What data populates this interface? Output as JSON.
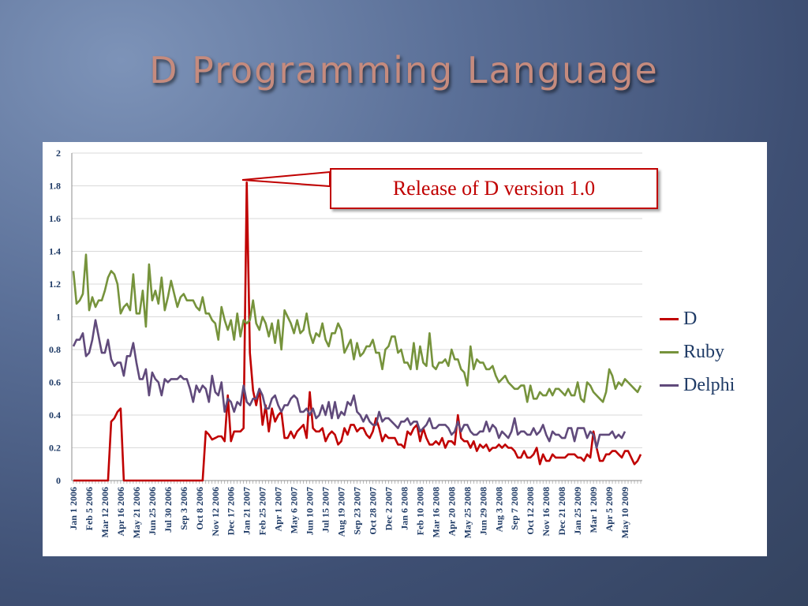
{
  "slide": {
    "title": "D Programming Language"
  },
  "annotation": {
    "text": "Release of D version 1.0"
  },
  "colors": {
    "D": "#c00000",
    "Ruby": "#76933c",
    "Delphi": "#604a7b",
    "grid": "#d9d9d9"
  },
  "chart_data": {
    "type": "line",
    "ylim": [
      0,
      2
    ],
    "yticks": [
      "0",
      "0.2",
      "0.4",
      "0.6",
      "0.8",
      "1",
      "1.2",
      "1.4",
      "1.6",
      "1.8",
      "2"
    ],
    "x_tick_labels": [
      "Jan 1 2006",
      "Feb 5 2006",
      "Mar 12 2006",
      "Apr 16 2006",
      "May 21 2006",
      "Jun 25 2006",
      "Jul 30 2006",
      "Sep 3 2006",
      "Oct 8 2006",
      "Nov 12 2006",
      "Dec 17 2006",
      "Jan 21 2007",
      "Feb 25 2007",
      "Apr 1 2007",
      "May 6 2007",
      "Jun 10 2007",
      "Jul 15 2007",
      "Aug 19 2007",
      "Sep 23 2007",
      "Oct 28 2007",
      "Dec 2 2007",
      "Jan 6 2008",
      "Feb 10 2008",
      "Mar 16 2008",
      "Apr 20 2008",
      "May 25 2008",
      "Jun 29 2008",
      "Aug 3 2008",
      "Sep 7 2008",
      "Oct 12 2008",
      "Nov 16 2008",
      "Dec 21 2008",
      "Jan 25 2009",
      "Mar 1 2009",
      "Apr 5 2009",
      "May 10 2009"
    ],
    "x_start": "Jan 1 2006",
    "x_interval": "weekly",
    "series": [
      {
        "name": "D",
        "values": [
          0,
          0,
          0,
          0,
          0,
          0,
          0,
          0,
          0,
          0,
          0,
          0,
          0.36,
          0.38,
          0.42,
          0.44,
          0,
          0,
          0,
          0,
          0,
          0,
          0,
          0,
          0,
          0,
          0,
          0,
          0,
          0,
          0,
          0,
          0,
          0,
          0,
          0,
          0,
          0,
          0,
          0,
          0,
          0,
          0.3,
          0.28,
          0.25,
          0.26,
          0.27,
          0.27,
          0.24,
          0.52,
          0.24,
          0.3,
          0.3,
          0.3,
          0.32,
          1.82,
          0.78,
          0.55,
          0.46,
          0.56,
          0.34,
          0.46,
          0.3,
          0.44,
          0.36,
          0.4,
          0.42,
          0.26,
          0.26,
          0.3,
          0.26,
          0.3,
          0.32,
          0.34,
          0.26,
          0.54,
          0.32,
          0.3,
          0.3,
          0.32,
          0.24,
          0.28,
          0.3,
          0.28,
          0.22,
          0.24,
          0.32,
          0.28,
          0.34,
          0.34,
          0.3,
          0.32,
          0.32,
          0.28,
          0.26,
          0.3,
          0.38,
          0.32,
          0.24,
          0.28,
          0.26,
          0.26,
          0.26,
          0.22,
          0.22,
          0.2,
          0.3,
          0.28,
          0.32,
          0.34,
          0.24,
          0.32,
          0.26,
          0.22,
          0.22,
          0.24,
          0.22,
          0.26,
          0.2,
          0.24,
          0.24,
          0.22,
          0.4,
          0.26,
          0.24,
          0.24,
          0.2,
          0.24,
          0.18,
          0.22,
          0.2,
          0.22,
          0.18,
          0.2,
          0.2,
          0.22,
          0.2,
          0.22,
          0.2,
          0.2,
          0.18,
          0.14,
          0.14,
          0.18,
          0.14,
          0.14,
          0.16,
          0.2,
          0.1,
          0.16,
          0.12,
          0.12,
          0.16,
          0.14,
          0.14,
          0.14,
          0.14,
          0.16,
          0.16,
          0.16,
          0.14,
          0.14,
          0.12,
          0.16,
          0.14,
          0.3,
          0.2,
          0.12,
          0.12,
          0.16,
          0.16,
          0.18,
          0.18,
          0.16,
          0.14,
          0.18,
          0.18,
          0.14,
          0.1,
          0.12,
          0.16
        ]
      },
      {
        "name": "Ruby",
        "values": [
          1.28,
          1.08,
          1.1,
          1.14,
          1.38,
          1.04,
          1.12,
          1.06,
          1.1,
          1.1,
          1.16,
          1.24,
          1.28,
          1.26,
          1.2,
          1.02,
          1.06,
          1.08,
          1.04,
          1.26,
          1.02,
          1.02,
          1.16,
          0.94,
          1.32,
          1.1,
          1.16,
          1.08,
          1.24,
          1.04,
          1.12,
          1.22,
          1.14,
          1.06,
          1.12,
          1.14,
          1.1,
          1.1,
          1.1,
          1.06,
          1.04,
          1.12,
          1.02,
          1.02,
          0.98,
          0.96,
          0.86,
          1.06,
          0.98,
          0.92,
          0.98,
          0.86,
          1.02,
          0.88,
          0.98,
          0.96,
          0.98,
          1.1,
          0.96,
          0.92,
          1.0,
          0.96,
          0.88,
          0.96,
          0.84,
          0.98,
          0.8,
          1.04,
          1.0,
          0.96,
          0.9,
          0.98,
          0.9,
          0.92,
          1.02,
          0.9,
          0.84,
          0.9,
          0.88,
          0.96,
          0.86,
          0.82,
          0.9,
          0.9,
          0.96,
          0.92,
          0.78,
          0.82,
          0.86,
          0.74,
          0.84,
          0.76,
          0.78,
          0.82,
          0.82,
          0.86,
          0.78,
          0.78,
          0.68,
          0.8,
          0.82,
          0.88,
          0.88,
          0.78,
          0.8,
          0.72,
          0.72,
          0.68,
          0.84,
          0.68,
          0.82,
          0.72,
          0.7,
          0.9,
          0.7,
          0.68,
          0.72,
          0.72,
          0.74,
          0.7,
          0.8,
          0.74,
          0.74,
          0.68,
          0.66,
          0.58,
          0.82,
          0.68,
          0.74,
          0.72,
          0.72,
          0.68,
          0.68,
          0.7,
          0.64,
          0.6,
          0.62,
          0.64,
          0.6,
          0.58,
          0.56,
          0.56,
          0.58,
          0.58,
          0.48,
          0.58,
          0.5,
          0.5,
          0.54,
          0.52,
          0.52,
          0.56,
          0.52,
          0.56,
          0.56,
          0.54,
          0.52,
          0.56,
          0.52,
          0.52,
          0.6,
          0.5,
          0.48,
          0.6,
          0.58,
          0.54,
          0.52,
          0.5,
          0.48,
          0.54,
          0.68,
          0.64,
          0.56,
          0.6,
          0.58,
          0.62,
          0.6,
          0.58,
          0.56,
          0.54,
          0.58
        ]
      },
      {
        "name": "Delphi",
        "values": [
          0.82,
          0.86,
          0.86,
          0.9,
          0.76,
          0.78,
          0.86,
          0.98,
          0.88,
          0.78,
          0.78,
          0.86,
          0.74,
          0.7,
          0.72,
          0.72,
          0.64,
          0.76,
          0.76,
          0.84,
          0.72,
          0.62,
          0.62,
          0.68,
          0.52,
          0.66,
          0.62,
          0.6,
          0.52,
          0.62,
          0.6,
          0.62,
          0.62,
          0.62,
          0.64,
          0.62,
          0.62,
          0.56,
          0.48,
          0.58,
          0.54,
          0.58,
          0.56,
          0.48,
          0.64,
          0.54,
          0.52,
          0.6,
          0.42,
          0.5,
          0.48,
          0.42,
          0.48,
          0.46,
          0.58,
          0.48,
          0.46,
          0.5,
          0.5,
          0.56,
          0.52,
          0.44,
          0.44,
          0.5,
          0.52,
          0.46,
          0.42,
          0.46,
          0.46,
          0.5,
          0.52,
          0.5,
          0.42,
          0.42,
          0.44,
          0.4,
          0.44,
          0.38,
          0.4,
          0.46,
          0.4,
          0.48,
          0.38,
          0.48,
          0.38,
          0.42,
          0.4,
          0.48,
          0.46,
          0.52,
          0.42,
          0.4,
          0.36,
          0.4,
          0.36,
          0.34,
          0.34,
          0.42,
          0.36,
          0.38,
          0.38,
          0.36,
          0.34,
          0.32,
          0.36,
          0.36,
          0.38,
          0.34,
          0.36,
          0.36,
          0.3,
          0.32,
          0.34,
          0.38,
          0.32,
          0.32,
          0.34,
          0.34,
          0.34,
          0.32,
          0.28,
          0.3,
          0.36,
          0.3,
          0.34,
          0.34,
          0.3,
          0.28,
          0.28,
          0.3,
          0.3,
          0.36,
          0.3,
          0.34,
          0.32,
          0.26,
          0.3,
          0.28,
          0.26,
          0.3,
          0.38,
          0.28,
          0.3,
          0.3,
          0.28,
          0.28,
          0.32,
          0.28,
          0.3,
          0.34,
          0.28,
          0.24,
          0.3,
          0.28,
          0.28,
          0.26,
          0.26,
          0.32,
          0.32,
          0.24,
          0.32,
          0.32,
          0.32,
          0.26,
          0.3,
          0.28,
          0.2,
          0.28,
          0.28,
          0.28,
          0.28,
          0.3,
          0.26,
          0.28,
          0.26,
          0.3
        ]
      }
    ],
    "legend_position": "right",
    "grid": "horizontal"
  }
}
